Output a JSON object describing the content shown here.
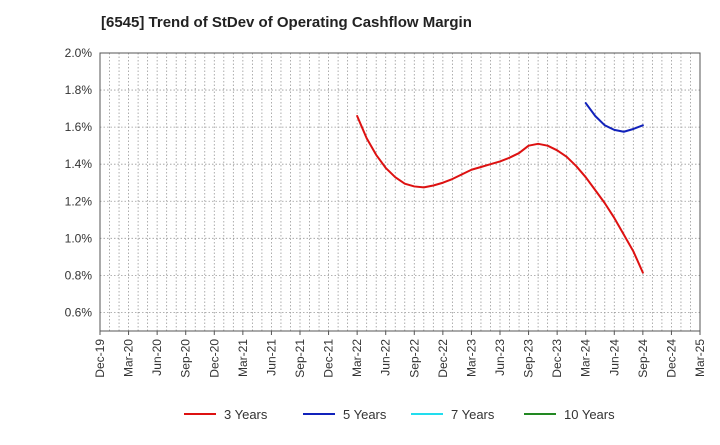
{
  "chart_data": {
    "type": "line",
    "title": "[6545]  Trend of StDev of Operating Cashflow Margin",
    "xlabel": "",
    "ylabel": "",
    "x_ticks": [
      "Dec-19",
      "Mar-20",
      "Jun-20",
      "Sep-20",
      "Dec-20",
      "Mar-21",
      "Jun-21",
      "Sep-21",
      "Dec-21",
      "Mar-22",
      "Jun-22",
      "Sep-22",
      "Dec-22",
      "Mar-23",
      "Jun-23",
      "Sep-23",
      "Dec-23",
      "Mar-24",
      "Jun-24",
      "Sep-24",
      "Dec-24",
      "Mar-25"
    ],
    "y_ticks": [
      "0.6%",
      "0.8%",
      "1.0%",
      "1.2%",
      "1.4%",
      "1.6%",
      "1.8%",
      "2.0%"
    ],
    "ylim": [
      0.5,
      2.0
    ],
    "grid": true,
    "legend_position": "bottom",
    "series": [
      {
        "name": "3 Years",
        "color": "#dd1111",
        "points": [
          {
            "x": "Mar-22",
            "y": 1.66
          },
          {
            "x": "Apr-22",
            "y": 1.54
          },
          {
            "x": "May-22",
            "y": 1.45
          },
          {
            "x": "Jun-22",
            "y": 1.38
          },
          {
            "x": "Jul-22",
            "y": 1.33
          },
          {
            "x": "Aug-22",
            "y": 1.295
          },
          {
            "x": "Sep-22",
            "y": 1.28
          },
          {
            "x": "Oct-22",
            "y": 1.275
          },
          {
            "x": "Nov-22",
            "y": 1.285
          },
          {
            "x": "Dec-22",
            "y": 1.3
          },
          {
            "x": "Jan-23",
            "y": 1.32
          },
          {
            "x": "Feb-23",
            "y": 1.345
          },
          {
            "x": "Mar-23",
            "y": 1.37
          },
          {
            "x": "Apr-23",
            "y": 1.385
          },
          {
            "x": "May-23",
            "y": 1.4
          },
          {
            "x": "Jun-23",
            "y": 1.415
          },
          {
            "x": "Jul-23",
            "y": 1.435
          },
          {
            "x": "Aug-23",
            "y": 1.46
          },
          {
            "x": "Sep-23",
            "y": 1.5
          },
          {
            "x": "Oct-23",
            "y": 1.51
          },
          {
            "x": "Nov-23",
            "y": 1.5
          },
          {
            "x": "Dec-23",
            "y": 1.475
          },
          {
            "x": "Jan-24",
            "y": 1.44
          },
          {
            "x": "Feb-24",
            "y": 1.39
          },
          {
            "x": "Mar-24",
            "y": 1.33
          },
          {
            "x": "Apr-24",
            "y": 1.26
          },
          {
            "x": "May-24",
            "y": 1.19
          },
          {
            "x": "Jun-24",
            "y": 1.11
          },
          {
            "x": "Jul-24",
            "y": 1.02
          },
          {
            "x": "Aug-24",
            "y": 0.93
          },
          {
            "x": "Sep-24",
            "y": 0.815
          }
        ]
      },
      {
        "name": "5 Years",
        "color": "#1122bb",
        "points": [
          {
            "x": "Mar-24",
            "y": 1.73
          },
          {
            "x": "Apr-24",
            "y": 1.66
          },
          {
            "x": "May-24",
            "y": 1.61
          },
          {
            "x": "Jun-24",
            "y": 1.585
          },
          {
            "x": "Jul-24",
            "y": 1.575
          },
          {
            "x": "Aug-24",
            "y": 1.59
          },
          {
            "x": "Sep-24",
            "y": 1.61
          }
        ]
      },
      {
        "name": "7 Years",
        "color": "#22ddee",
        "points": []
      },
      {
        "name": "10 Years",
        "color": "#228822",
        "points": []
      }
    ]
  }
}
